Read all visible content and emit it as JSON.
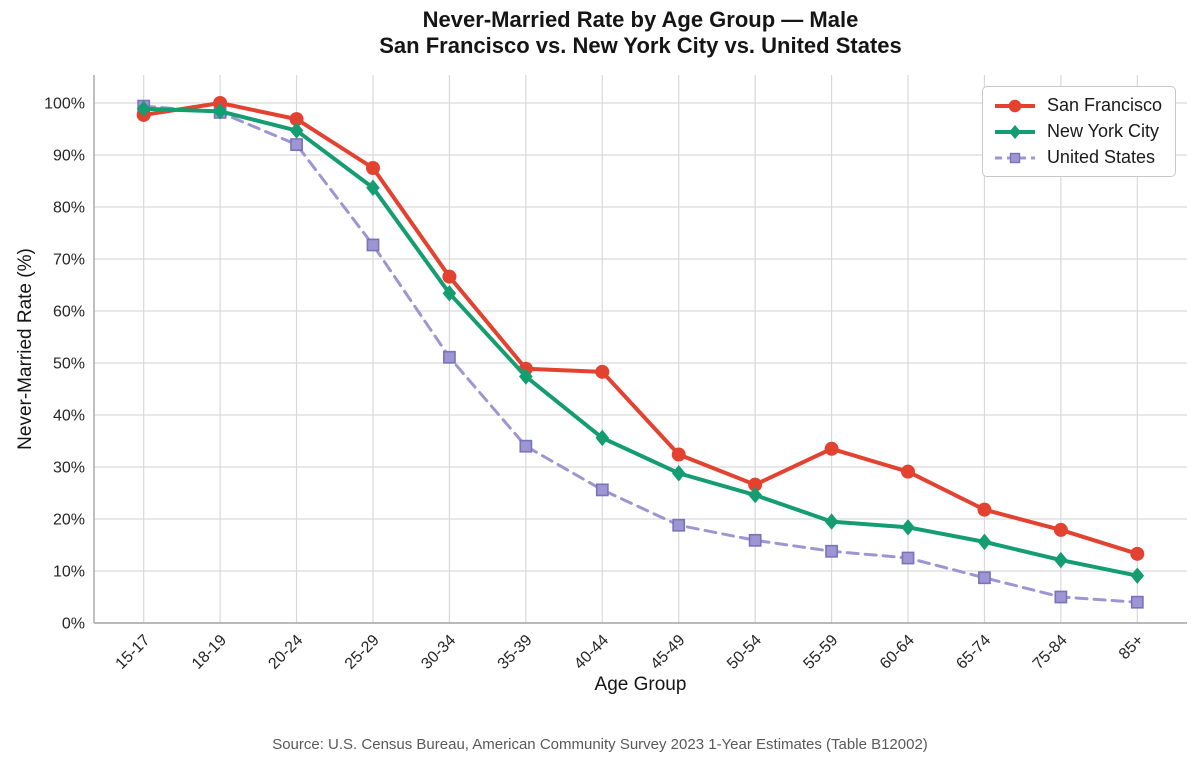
{
  "chart_data": {
    "type": "line",
    "title": "Never-Married Rate by Age Group — Male",
    "subtitle": "San Francisco vs. New York City vs. United States",
    "xlabel": "Age Group",
    "ylabel": "Never-Married Rate (%)",
    "source": "Source: U.S. Census Bureau, American Community Survey 2023 1-Year Estimates (Table B12002)",
    "categories": [
      "15-17",
      "18-19",
      "20-24",
      "25-29",
      "30-34",
      "35-39",
      "40-44",
      "45-49",
      "50-54",
      "55-59",
      "60-64",
      "65-74",
      "75-84",
      "85+"
    ],
    "series": [
      {
        "name": "San Francisco",
        "color": "#e2422f",
        "marker": "circle",
        "dash": "solid",
        "values": [
          97.7,
          100.0,
          96.9,
          87.5,
          66.6,
          48.9,
          48.3,
          32.4,
          26.6,
          33.5,
          29.1,
          21.8,
          17.9,
          13.3
        ]
      },
      {
        "name": "New York City",
        "color": "#159d72",
        "marker": "diamond",
        "dash": "solid",
        "values": [
          98.9,
          98.4,
          94.7,
          83.7,
          63.4,
          47.4,
          35.6,
          28.8,
          24.6,
          19.5,
          18.4,
          15.6,
          12.1,
          9.1
        ]
      },
      {
        "name": "United States",
        "color": "#9d96d2",
        "marker": "square",
        "marker_edge": "#7b72bd",
        "dash": "dashed",
        "values": [
          99.4,
          98.2,
          92.0,
          72.7,
          51.1,
          34.0,
          25.6,
          18.8,
          15.9,
          13.8,
          12.5,
          8.7,
          5.0,
          4.0
        ]
      }
    ],
    "ylim": [
      0,
      100
    ],
    "ytick_labels": [
      "0%",
      "10%",
      "20%",
      "30%",
      "40%",
      "50%",
      "60%",
      "70%",
      "80%",
      "90%",
      "100%"
    ],
    "grid": true,
    "legend_position": "upper right",
    "colors": {
      "grid": "#d9d9d9",
      "spine": "#a6a6a6",
      "tick_text": "#262626"
    }
  }
}
